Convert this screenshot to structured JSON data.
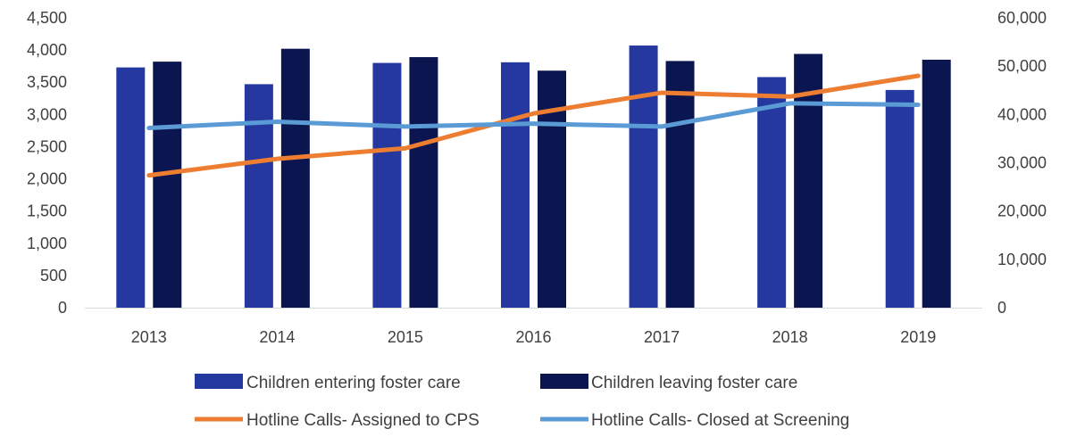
{
  "chart_data": {
    "type": "bar",
    "title": "",
    "categories": [
      "2013",
      "2014",
      "2015",
      "2016",
      "2017",
      "2018",
      "2019"
    ],
    "left_axis": {
      "ylim": [
        0,
        4500
      ],
      "ticks": [
        "0",
        "500",
        "1,000",
        "1,500",
        "2,000",
        "2,500",
        "3,000",
        "3,500",
        "4,000",
        "4,500"
      ]
    },
    "right_axis": {
      "ylim": [
        0,
        60000
      ],
      "ticks": [
        "0",
        "10,000",
        "20,000",
        "30,000",
        "40,000",
        "50,000",
        "60,000"
      ]
    },
    "bar_series": [
      {
        "name": "Children entering foster care",
        "color": "#2438a0",
        "axis": "left",
        "values": [
          3730,
          3470,
          3800,
          3810,
          4070,
          3580,
          3380
        ]
      },
      {
        "name": "Children leaving foster care",
        "color": "#0b1650",
        "axis": "left",
        "values": [
          3820,
          4020,
          3890,
          3680,
          3830,
          3940,
          3850
        ]
      }
    ],
    "line_series": [
      {
        "name": "Hotline Calls- Assigned to CPS",
        "color": "#ed7d31",
        "axis": "right",
        "values": [
          27400,
          30800,
          33000,
          40200,
          44500,
          43700,
          48000
        ]
      },
      {
        "name": "Hotline Calls- Closed at Screening",
        "color": "#5b9bd5",
        "axis": "right",
        "values": [
          37200,
          38500,
          37500,
          38100,
          37500,
          42300,
          42000
        ]
      }
    ],
    "grid": false,
    "legend_position": "bottom"
  }
}
